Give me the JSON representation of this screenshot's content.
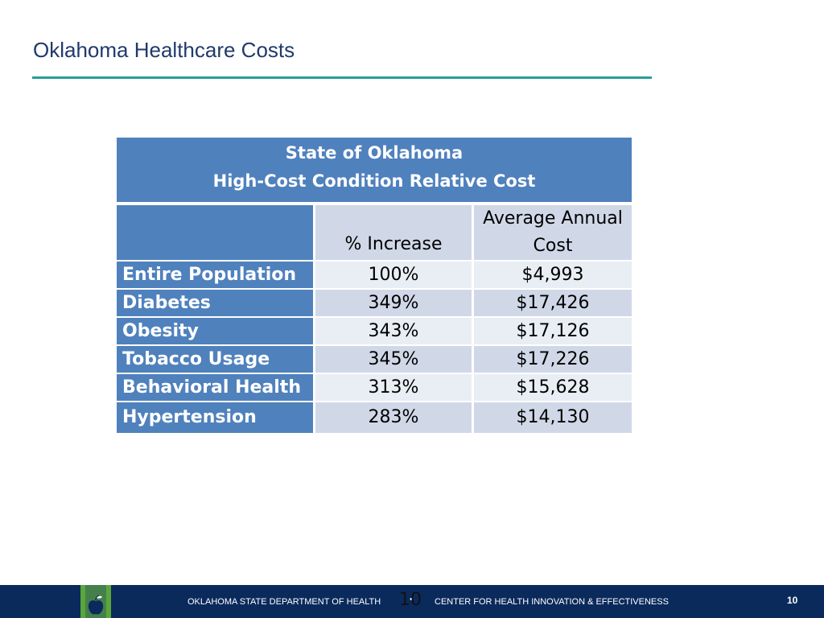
{
  "slide": {
    "title": "Oklahoma Healthcare Costs"
  },
  "table": {
    "header_line1": "State of Oklahoma",
    "header_line2": "High-Cost Condition Relative Cost",
    "columns": {
      "blank": "",
      "pct_increase": "% Increase",
      "avg_cost_line1": "Average Annual",
      "avg_cost_line2": "Cost"
    },
    "rows": [
      {
        "condition": "Entire Population",
        "pct": "100%",
        "cost": "$4,993"
      },
      {
        "condition": "Diabetes",
        "pct": "349%",
        "cost": "$17,426"
      },
      {
        "condition": "Obesity",
        "pct": "343%",
        "cost": "$17,126"
      },
      {
        "condition": "Tobacco Usage",
        "pct": "345%",
        "cost": "$17,226"
      },
      {
        "condition": "Behavioral Health",
        "pct": "313%",
        "cost": "$15,628"
      },
      {
        "condition": "Hypertension",
        "pct": "283%",
        "cost": "$14,130"
      }
    ]
  },
  "footer": {
    "left_text": "OKLAHOMA STATE DEPARTMENT OF HEALTH",
    "separator": "•",
    "right_text": "CENTER FOR HEALTH INNOVATION & EFFECTIVENESS",
    "center_number": "10",
    "page_number": "10",
    "logo": "apple-logo"
  },
  "colors": {
    "title": "#1f3a6b",
    "rule": "#2a9d9b",
    "header_blue": "#4f81bd",
    "footer_navy": "#0a2a5c",
    "logo_green": "#5aa63c"
  }
}
